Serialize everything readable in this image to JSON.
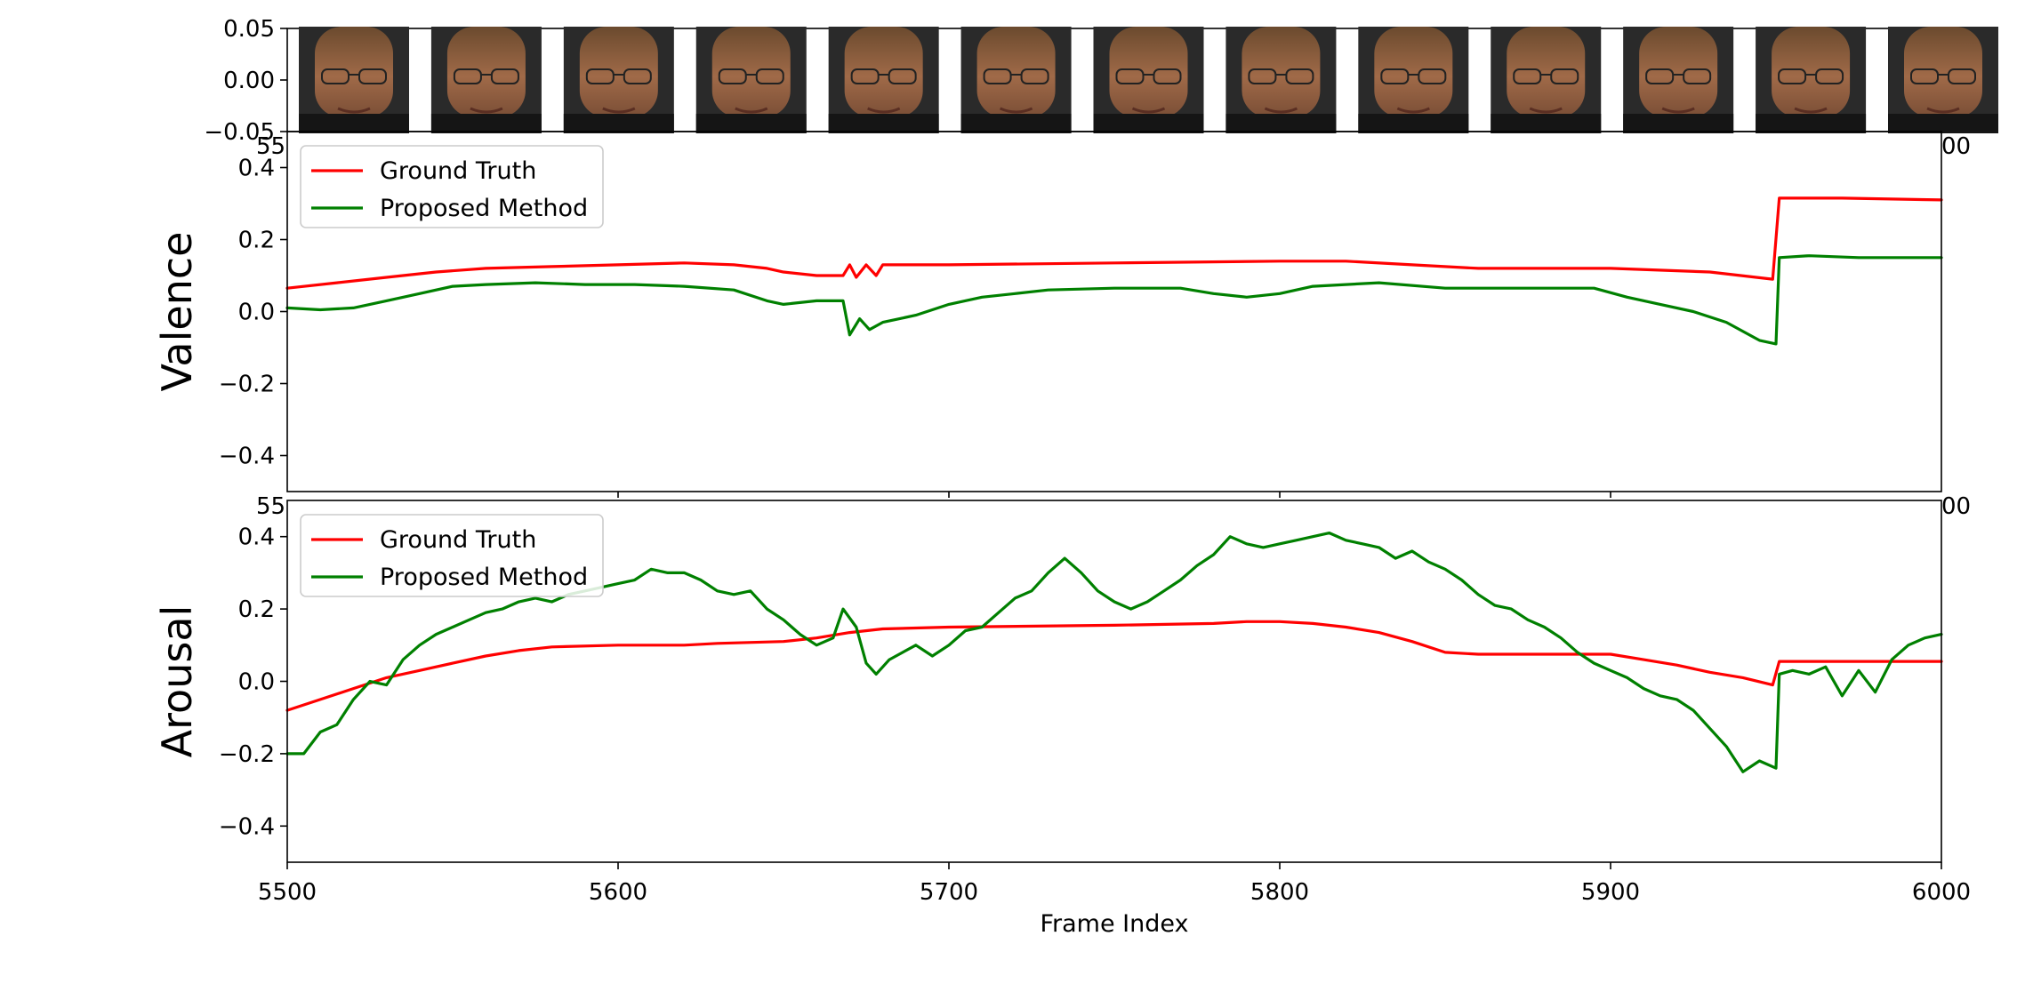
{
  "chart_data": [
    {
      "type": "line",
      "panel": "frames",
      "title": "",
      "xlabel": "",
      "ylabel": "",
      "xlim": [
        5500,
        6000
      ],
      "ylim": [
        -0.05,
        0.05
      ],
      "yticks": [
        0.05,
        0.0,
        -0.05
      ],
      "ytick_labels": [
        "0.05",
        "0.00",
        "−0.05"
      ],
      "xtick_labels_partial": [
        "55",
        "00"
      ],
      "frame_thumbnails": 13,
      "thumbnail_description": "face-frame"
    },
    {
      "type": "line",
      "panel": "valence",
      "title": "",
      "xlabel": "",
      "ylabel": "Valence",
      "xlim": [
        5500,
        6000
      ],
      "ylim": [
        -0.5,
        0.5
      ],
      "yticks": [
        0.4,
        0.2,
        0.0,
        -0.2,
        -0.4
      ],
      "ytick_labels": [
        "0.4",
        "0.2",
        "0.0",
        "−0.2",
        "−0.4"
      ],
      "xtick_labels_partial": [
        "55",
        "00"
      ],
      "legend": {
        "placement": "top-left",
        "entries": [
          "Ground Truth",
          "Proposed Method"
        ]
      },
      "series": [
        {
          "name": "Ground Truth",
          "color": "#ff0000",
          "points": [
            [
              5500,
              0.065
            ],
            [
              5515,
              0.08
            ],
            [
              5530,
              0.095
            ],
            [
              5545,
              0.11
            ],
            [
              5560,
              0.12
            ],
            [
              5580,
              0.125
            ],
            [
              5600,
              0.13
            ],
            [
              5620,
              0.135
            ],
            [
              5635,
              0.13
            ],
            [
              5645,
              0.12
            ],
            [
              5650,
              0.11
            ],
            [
              5660,
              0.1
            ],
            [
              5668,
              0.1
            ],
            [
              5670,
              0.13
            ],
            [
              5672,
              0.095
            ],
            [
              5675,
              0.13
            ],
            [
              5678,
              0.1
            ],
            [
              5680,
              0.13
            ],
            [
              5700,
              0.13
            ],
            [
              5750,
              0.135
            ],
            [
              5800,
              0.14
            ],
            [
              5820,
              0.14
            ],
            [
              5840,
              0.13
            ],
            [
              5860,
              0.12
            ],
            [
              5900,
              0.12
            ],
            [
              5930,
              0.11
            ],
            [
              5949,
              0.09
            ],
            [
              5951,
              0.315
            ],
            [
              5970,
              0.315
            ],
            [
              6000,
              0.31
            ]
          ]
        },
        {
          "name": "Proposed Method",
          "color": "#008000",
          "points": [
            [
              5500,
              0.01
            ],
            [
              5510,
              0.005
            ],
            [
              5520,
              0.01
            ],
            [
              5530,
              0.03
            ],
            [
              5540,
              0.05
            ],
            [
              5550,
              0.07
            ],
            [
              5560,
              0.075
            ],
            [
              5575,
              0.08
            ],
            [
              5590,
              0.075
            ],
            [
              5605,
              0.075
            ],
            [
              5620,
              0.07
            ],
            [
              5635,
              0.06
            ],
            [
              5645,
              0.03
            ],
            [
              5650,
              0.02
            ],
            [
              5660,
              0.03
            ],
            [
              5668,
              0.03
            ],
            [
              5670,
              -0.065
            ],
            [
              5673,
              -0.02
            ],
            [
              5676,
              -0.05
            ],
            [
              5680,
              -0.03
            ],
            [
              5690,
              -0.01
            ],
            [
              5700,
              0.02
            ],
            [
              5710,
              0.04
            ],
            [
              5720,
              0.05
            ],
            [
              5730,
              0.06
            ],
            [
              5750,
              0.065
            ],
            [
              5770,
              0.065
            ],
            [
              5780,
              0.05
            ],
            [
              5790,
              0.04
            ],
            [
              5800,
              0.05
            ],
            [
              5810,
              0.07
            ],
            [
              5830,
              0.08
            ],
            [
              5850,
              0.065
            ],
            [
              5880,
              0.065
            ],
            [
              5895,
              0.065
            ],
            [
              5905,
              0.04
            ],
            [
              5915,
              0.02
            ],
            [
              5925,
              0.0
            ],
            [
              5935,
              -0.03
            ],
            [
              5945,
              -0.08
            ],
            [
              5950,
              -0.09
            ],
            [
              5951,
              0.15
            ],
            [
              5960,
              0.155
            ],
            [
              5975,
              0.15
            ],
            [
              6000,
              0.15
            ]
          ]
        }
      ]
    },
    {
      "type": "line",
      "panel": "arousal",
      "title": "",
      "xlabel": "Frame Index",
      "ylabel": "Arousal",
      "xlim": [
        5500,
        6000
      ],
      "ylim": [
        -0.5,
        0.5
      ],
      "yticks": [
        0.4,
        0.2,
        0.0,
        -0.2,
        -0.4
      ],
      "ytick_labels": [
        "0.4",
        "0.2",
        "0.0",
        "−0.2",
        "−0.4"
      ],
      "xticks": [
        5500,
        5600,
        5700,
        5800,
        5900,
        6000
      ],
      "xtick_labels": [
        "5500",
        "5600",
        "5700",
        "5800",
        "5900",
        "6000"
      ],
      "xtick_labels_partial": [
        "55",
        "00"
      ],
      "legend": {
        "placement": "top-left",
        "entries": [
          "Ground Truth",
          "Proposed Method"
        ]
      },
      "series": [
        {
          "name": "Ground Truth",
          "color": "#ff0000",
          "points": [
            [
              5500,
              -0.08
            ],
            [
              5510,
              -0.05
            ],
            [
              5520,
              -0.02
            ],
            [
              5530,
              0.01
            ],
            [
              5540,
              0.03
            ],
            [
              5550,
              0.05
            ],
            [
              5560,
              0.07
            ],
            [
              5570,
              0.085
            ],
            [
              5580,
              0.095
            ],
            [
              5600,
              0.1
            ],
            [
              5620,
              0.1
            ],
            [
              5630,
              0.105
            ],
            [
              5650,
              0.11
            ],
            [
              5660,
              0.12
            ],
            [
              5670,
              0.135
            ],
            [
              5680,
              0.145
            ],
            [
              5700,
              0.15
            ],
            [
              5750,
              0.155
            ],
            [
              5780,
              0.16
            ],
            [
              5790,
              0.165
            ],
            [
              5800,
              0.165
            ],
            [
              5810,
              0.16
            ],
            [
              5820,
              0.15
            ],
            [
              5830,
              0.135
            ],
            [
              5840,
              0.11
            ],
            [
              5850,
              0.08
            ],
            [
              5860,
              0.075
            ],
            [
              5900,
              0.075
            ],
            [
              5910,
              0.06
            ],
            [
              5920,
              0.045
            ],
            [
              5930,
              0.025
            ],
            [
              5940,
              0.01
            ],
            [
              5949,
              -0.01
            ],
            [
              5951,
              0.055
            ],
            [
              5970,
              0.055
            ],
            [
              6000,
              0.055
            ]
          ]
        },
        {
          "name": "Proposed Method",
          "color": "#008000",
          "points": [
            [
              5500,
              -0.2
            ],
            [
              5505,
              -0.2
            ],
            [
              5510,
              -0.14
            ],
            [
              5515,
              -0.12
            ],
            [
              5520,
              -0.05
            ],
            [
              5525,
              0.0
            ],
            [
              5530,
              -0.01
            ],
            [
              5535,
              0.06
            ],
            [
              5540,
              0.1
            ],
            [
              5545,
              0.13
            ],
            [
              5550,
              0.15
            ],
            [
              5555,
              0.17
            ],
            [
              5560,
              0.19
            ],
            [
              5565,
              0.2
            ],
            [
              5570,
              0.22
            ],
            [
              5575,
              0.23
            ],
            [
              5580,
              0.22
            ],
            [
              5585,
              0.24
            ],
            [
              5590,
              0.25
            ],
            [
              5595,
              0.26
            ],
            [
              5600,
              0.27
            ],
            [
              5605,
              0.28
            ],
            [
              5610,
              0.31
            ],
            [
              5615,
              0.3
            ],
            [
              5620,
              0.3
            ],
            [
              5625,
              0.28
            ],
            [
              5630,
              0.25
            ],
            [
              5635,
              0.24
            ],
            [
              5640,
              0.25
            ],
            [
              5645,
              0.2
            ],
            [
              5650,
              0.17
            ],
            [
              5655,
              0.13
            ],
            [
              5660,
              0.1
            ],
            [
              5665,
              0.12
            ],
            [
              5668,
              0.2
            ],
            [
              5672,
              0.15
            ],
            [
              5675,
              0.05
            ],
            [
              5678,
              0.02
            ],
            [
              5682,
              0.06
            ],
            [
              5690,
              0.1
            ],
            [
              5695,
              0.07
            ],
            [
              5700,
              0.1
            ],
            [
              5705,
              0.14
            ],
            [
              5710,
              0.15
            ],
            [
              5715,
              0.19
            ],
            [
              5720,
              0.23
            ],
            [
              5725,
              0.25
            ],
            [
              5730,
              0.3
            ],
            [
              5735,
              0.34
            ],
            [
              5740,
              0.3
            ],
            [
              5745,
              0.25
            ],
            [
              5750,
              0.22
            ],
            [
              5755,
              0.2
            ],
            [
              5760,
              0.22
            ],
            [
              5765,
              0.25
            ],
            [
              5770,
              0.28
            ],
            [
              5775,
              0.32
            ],
            [
              5780,
              0.35
            ],
            [
              5785,
              0.4
            ],
            [
              5790,
              0.38
            ],
            [
              5795,
              0.37
            ],
            [
              5800,
              0.38
            ],
            [
              5805,
              0.39
            ],
            [
              5810,
              0.4
            ],
            [
              5815,
              0.41
            ],
            [
              5820,
              0.39
            ],
            [
              5825,
              0.38
            ],
            [
              5830,
              0.37
            ],
            [
              5835,
              0.34
            ],
            [
              5840,
              0.36
            ],
            [
              5845,
              0.33
            ],
            [
              5850,
              0.31
            ],
            [
              5855,
              0.28
            ],
            [
              5860,
              0.24
            ],
            [
              5865,
              0.21
            ],
            [
              5870,
              0.2
            ],
            [
              5875,
              0.17
            ],
            [
              5880,
              0.15
            ],
            [
              5885,
              0.12
            ],
            [
              5890,
              0.08
            ],
            [
              5895,
              0.05
            ],
            [
              5900,
              0.03
            ],
            [
              5905,
              0.01
            ],
            [
              5910,
              -0.02
            ],
            [
              5915,
              -0.04
            ],
            [
              5920,
              -0.05
            ],
            [
              5925,
              -0.08
            ],
            [
              5930,
              -0.13
            ],
            [
              5935,
              -0.18
            ],
            [
              5940,
              -0.25
            ],
            [
              5945,
              -0.22
            ],
            [
              5950,
              -0.24
            ],
            [
              5951,
              0.02
            ],
            [
              5955,
              0.03
            ],
            [
              5960,
              0.02
            ],
            [
              5965,
              0.04
            ],
            [
              5970,
              -0.04
            ],
            [
              5975,
              0.03
            ],
            [
              5980,
              -0.03
            ],
            [
              5985,
              0.06
            ],
            [
              5990,
              0.1
            ],
            [
              5995,
              0.12
            ],
            [
              6000,
              0.13
            ]
          ]
        }
      ]
    }
  ]
}
